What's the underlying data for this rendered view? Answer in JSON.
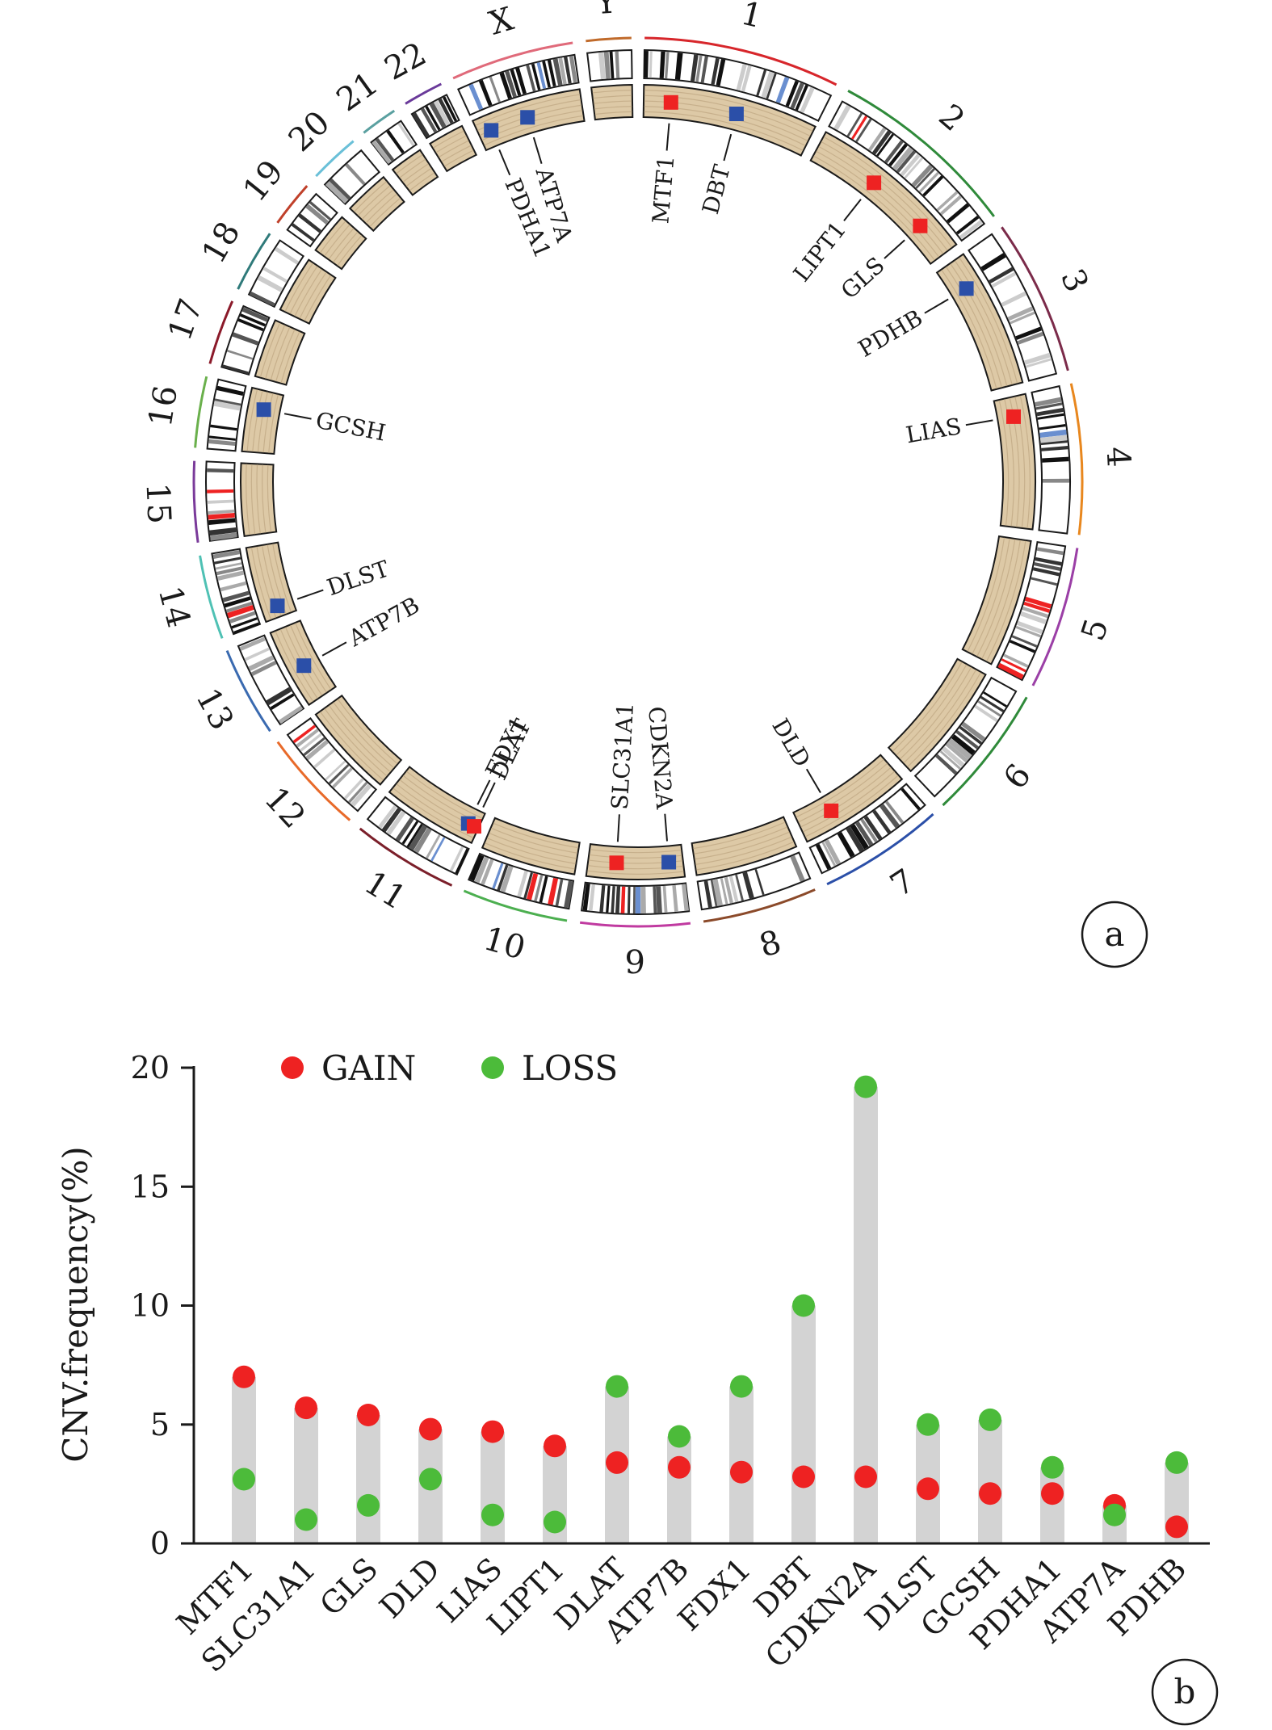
{
  "panel_a": {
    "tag": "a",
    "colors": {
      "gain": "#ee2222",
      "loss": "#2b4fa8",
      "track": "#ddc9a6",
      "track_line": "#c7b08c"
    },
    "chromosomes": [
      {
        "label": "1",
        "size": 248,
        "color": "#d7262b"
      },
      {
        "label": "2",
        "size": 242,
        "color": "#2f8a3a"
      },
      {
        "label": "3",
        "size": 198,
        "color": "#7b2b4a"
      },
      {
        "label": "4",
        "size": 190,
        "color": "#e8871e"
      },
      {
        "label": "5",
        "size": 181,
        "color": "#9b3fa6"
      },
      {
        "label": "6",
        "size": 171,
        "color": "#2f8a3a"
      },
      {
        "label": "7",
        "size": 159,
        "color": "#2b4fa8"
      },
      {
        "label": "8",
        "size": 145,
        "color": "#8b4a2a"
      },
      {
        "label": "9",
        "size": 138,
        "color": "#c03aa0"
      },
      {
        "label": "10",
        "size": 134,
        "color": "#4caf50"
      },
      {
        "label": "11",
        "size": 135,
        "color": "#7b1f2a"
      },
      {
        "label": "12",
        "size": 133,
        "color": "#e86a2a"
      },
      {
        "label": "13",
        "size": 114,
        "color": "#3a6ab0"
      },
      {
        "label": "14",
        "size": 107,
        "color": "#4fc1b4"
      },
      {
        "label": "15",
        "size": 102,
        "color": "#7a3a9a"
      },
      {
        "label": "16",
        "size": 90,
        "color": "#6ab04c"
      },
      {
        "label": "17",
        "size": 83,
        "color": "#8b1a2a"
      },
      {
        "label": "18",
        "size": 80,
        "color": "#2f7a7a"
      },
      {
        "label": "19",
        "size": 59,
        "color": "#c0402a"
      },
      {
        "label": "20",
        "size": 64,
        "color": "#6ac0d8"
      },
      {
        "label": "21",
        "size": 47,
        "color": "#5aa0a0"
      },
      {
        "label": "22",
        "size": 51,
        "color": "#6a3a9a"
      },
      {
        "label": "X",
        "size": 156,
        "color": "#e06a7a"
      },
      {
        "label": "Y",
        "size": 57,
        "color": "#c06a2a"
      }
    ],
    "genes": [
      {
        "name": "MTF1",
        "chr": "1",
        "pos": 0.16,
        "type": "gain"
      },
      {
        "name": "DBT",
        "chr": "1",
        "pos": 0.55,
        "type": "loss"
      },
      {
        "name": "LIPT1",
        "chr": "2",
        "pos": 0.4,
        "type": "gain"
      },
      {
        "name": "GLS",
        "chr": "2",
        "pos": 0.78,
        "type": "gain"
      },
      {
        "name": "PDHB",
        "chr": "3",
        "pos": 0.22,
        "type": "loss"
      },
      {
        "name": "LIAS",
        "chr": "4",
        "pos": 0.15,
        "type": "gain"
      },
      {
        "name": "DLD",
        "chr": "7",
        "pos": 0.68,
        "type": "gain"
      },
      {
        "name": "CDKN2A",
        "chr": "9",
        "pos": 0.15,
        "type": "loss"
      },
      {
        "name": "SLC31A1",
        "chr": "9",
        "pos": 0.7,
        "type": "gain"
      },
      {
        "name": "FDX1",
        "chr": "11",
        "pos": 0.12,
        "type": "loss"
      },
      {
        "name": "DLAT",
        "chr": "11",
        "pos": 0.05,
        "type": "gain"
      },
      {
        "name": "ATP7B",
        "chr": "13",
        "pos": 0.45,
        "type": "loss"
      },
      {
        "name": "DLST",
        "chr": "14",
        "pos": 0.15,
        "type": "loss"
      },
      {
        "name": "GCSH",
        "chr": "16",
        "pos": 0.7,
        "type": "loss"
      },
      {
        "name": "PDHA1",
        "chr": "X",
        "pos": 0.12,
        "type": "loss"
      },
      {
        "name": "ATP7A",
        "chr": "X",
        "pos": 0.48,
        "type": "loss"
      }
    ]
  },
  "chart_data": {
    "type": "scatter",
    "tag": "b",
    "categories": [
      "MTF1",
      "SLC31A1",
      "GLS",
      "DLD",
      "LIAS",
      "LIPT1",
      "DLAT",
      "ATP7B",
      "FDX1",
      "DBT",
      "CDKN2A",
      "DLST",
      "GCSH",
      "PDHA1",
      "ATP7A",
      "PDHB"
    ],
    "series": [
      {
        "name": "GAIN",
        "color": "#ee2222",
        "values": [
          7.0,
          5.7,
          5.4,
          4.8,
          4.7,
          4.1,
          3.4,
          3.2,
          3.0,
          2.8,
          2.8,
          2.3,
          2.1,
          2.1,
          1.6,
          0.7
        ]
      },
      {
        "name": "LOSS",
        "color": "#4cbb3a",
        "values": [
          2.7,
          1.0,
          1.6,
          2.7,
          1.2,
          0.9,
          6.6,
          4.5,
          6.6,
          10.0,
          19.2,
          5.0,
          5.2,
          3.2,
          1.2,
          3.4
        ]
      }
    ],
    "bar_color": "#d3d3d3",
    "ylabel": "CNV.frequency(%)",
    "xlabel": "",
    "ylim": [
      0,
      20
    ],
    "yticks": [
      "0",
      "5",
      "10",
      "15",
      "20"
    ],
    "legend_position": "top-left",
    "grid": false
  }
}
